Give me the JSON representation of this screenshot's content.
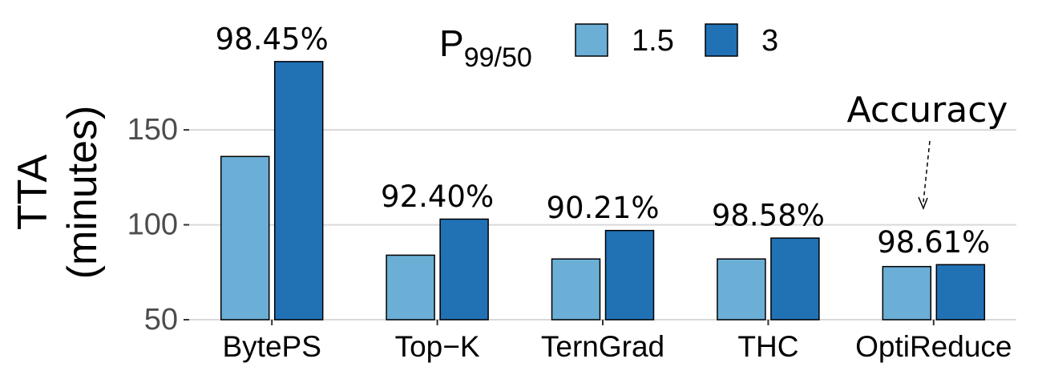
{
  "chart_data": {
    "type": "bar",
    "y_label_lines": [
      "TTA",
      "(minutes)"
    ],
    "legend_title": "P",
    "legend_title_subscript": "99/50",
    "categories": [
      "BytePS",
      "Top−K",
      "TernGrad",
      "THC",
      "OptiReduce"
    ],
    "series": [
      {
        "name": "1.5",
        "color": "#6baed6",
        "values": [
          136,
          84,
          82,
          82,
          78
        ]
      },
      {
        "name": "3",
        "color": "#2171b5",
        "values": [
          186,
          103,
          97,
          93,
          79
        ]
      }
    ],
    "accuracy_labels": [
      "98.45%",
      "92.40%",
      "90.21%",
      "98.58%",
      "98.61%"
    ],
    "annotation": "Accuracy",
    "ylim": [
      50,
      210
    ],
    "yticks": [
      50,
      100,
      150
    ],
    "grid": true
  }
}
